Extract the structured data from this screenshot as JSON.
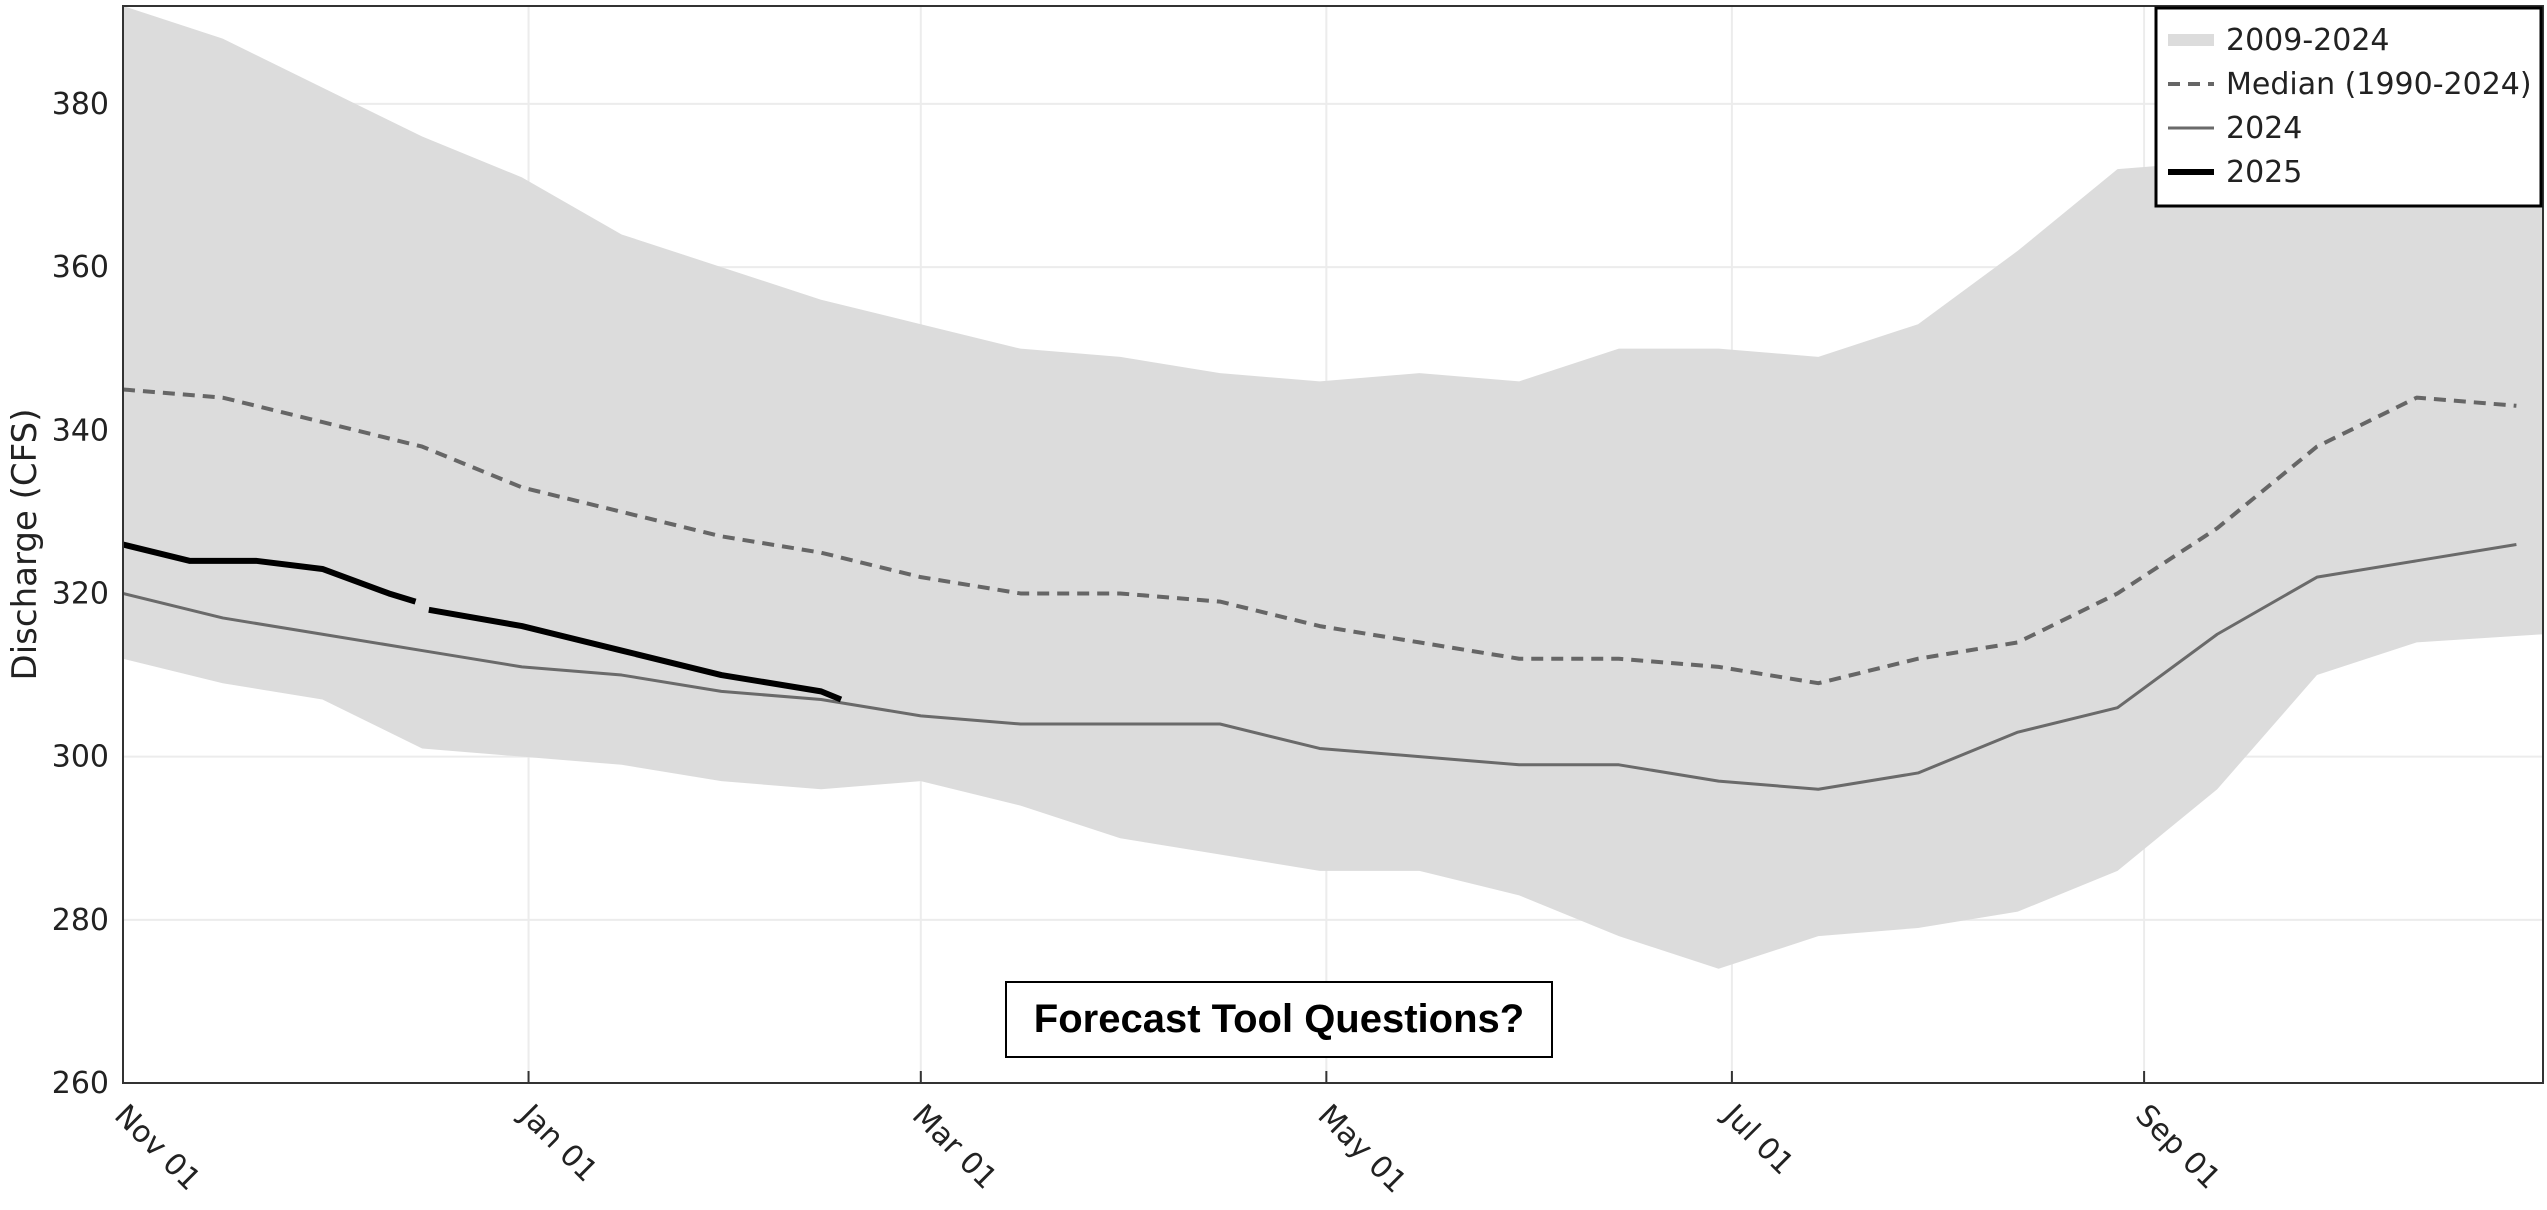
{
  "chart_data": {
    "type": "line",
    "y_label": "Discharge (CFS)",
    "xlim": [
      0,
      364
    ],
    "xticks": [
      {
        "value": 0,
        "label": "Nov 01"
      },
      {
        "value": 61,
        "label": "Jan 01"
      },
      {
        "value": 120,
        "label": "Mar 01"
      },
      {
        "value": 181,
        "label": "May 01"
      },
      {
        "value": 242,
        "label": "Jul 01"
      },
      {
        "value": 304,
        "label": "Sep 01"
      }
    ],
    "ylim": [
      260,
      392
    ],
    "yticks": [
      260,
      280,
      300,
      320,
      340,
      360,
      380
    ],
    "grid": true,
    "legend": "upper right",
    "band": {
      "name": "2009-2024",
      "color": "#dcdcdc",
      "x": [
        0,
        15,
        30,
        45,
        60,
        75,
        90,
        105,
        120,
        135,
        150,
        165,
        180,
        195,
        210,
        225,
        240,
        255,
        270,
        285,
        300,
        315,
        330,
        345,
        364
      ],
      "upper": [
        392,
        388,
        382,
        376,
        371,
        364,
        360,
        356,
        353,
        350,
        349,
        347,
        346,
        347,
        346,
        350,
        350,
        349,
        353,
        362,
        372,
        373,
        372,
        372,
        372
      ],
      "lower": [
        312,
        309,
        307,
        301,
        300,
        299,
        297,
        296,
        297,
        294,
        290,
        288,
        286,
        286,
        283,
        278,
        274,
        278,
        279,
        281,
        286,
        296,
        310,
        314,
        315
      ]
    },
    "series": [
      {
        "name": "Median (1990-2024)",
        "color": "#666666",
        "dashed": true,
        "width": 4,
        "x": [
          0,
          15,
          30,
          45,
          60,
          75,
          90,
          105,
          120,
          135,
          150,
          165,
          180,
          195,
          210,
          225,
          240,
          255,
          270,
          285,
          300,
          315,
          330,
          345,
          360
        ],
        "values": [
          345,
          344,
          341,
          338,
          333,
          330,
          327,
          325,
          322,
          320,
          320,
          319,
          316,
          314,
          312,
          312,
          311,
          309,
          312,
          314,
          320,
          328,
          338,
          344,
          343
        ]
      },
      {
        "name": "2024",
        "color": "#6a6a6a",
        "dashed": false,
        "width": 3,
        "x": [
          0,
          15,
          30,
          45,
          60,
          75,
          90,
          105,
          120,
          135,
          150,
          165,
          180,
          195,
          210,
          225,
          240,
          255,
          270,
          285,
          300,
          315,
          330,
          345,
          360
        ],
        "values": [
          320,
          317,
          315,
          313,
          311,
          310,
          308,
          307,
          305,
          304,
          304,
          304,
          301,
          300,
          299,
          299,
          297,
          296,
          298,
          303,
          306,
          315,
          322,
          324,
          326
        ]
      },
      {
        "name": "2025",
        "color": "#000000",
        "dashed": false,
        "width": 6,
        "x": [
          0,
          10,
          20,
          30,
          40,
          44,
          45,
          46,
          60,
          75,
          90,
          105,
          108
        ],
        "values": [
          326,
          324,
          324,
          323,
          320,
          319,
          null,
          318,
          316,
          313,
          310,
          308,
          307
        ]
      }
    ]
  },
  "button": {
    "label": "Forecast Tool Questions?"
  }
}
